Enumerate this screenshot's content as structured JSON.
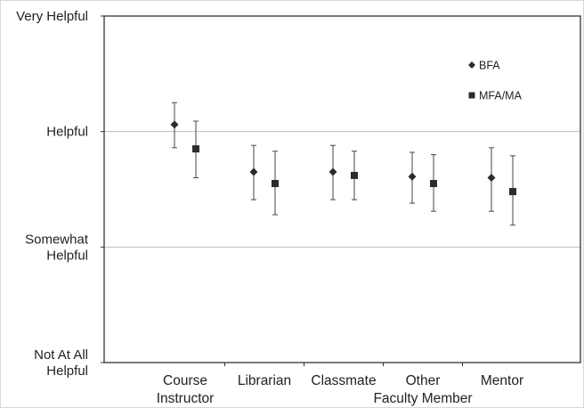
{
  "chart_data": {
    "type": "scatter",
    "y_ticks": [
      {
        "value": 0,
        "lines": [
          "Not At All",
          "Helpful"
        ]
      },
      {
        "value": 1,
        "lines": [
          "Somewhat",
          "Helpful"
        ]
      },
      {
        "value": 2,
        "lines": [
          "Helpful"
        ]
      },
      {
        "value": 3,
        "lines": [
          "Very Helpful"
        ]
      }
    ],
    "ylim": [
      0,
      3
    ],
    "categories": [
      {
        "name": "Course Instructor",
        "lines": [
          "Course",
          "Instructor"
        ]
      },
      {
        "name": "Librarian",
        "lines": [
          "Librarian"
        ]
      },
      {
        "name": "Classmate",
        "lines": [
          "Classmate"
        ]
      },
      {
        "name": "Other Faculty Member",
        "lines": [
          "Other",
          "Faculty  Member"
        ]
      },
      {
        "name": "Mentor",
        "lines": [
          "Mentor"
        ]
      }
    ],
    "series": [
      {
        "name": "BFA",
        "marker": "diamond",
        "values": [
          2.06,
          1.65,
          1.65,
          1.61,
          1.6
        ],
        "error_low": [
          1.86,
          1.41,
          1.41,
          1.38,
          1.31
        ],
        "error_high": [
          2.25,
          1.88,
          1.88,
          1.82,
          1.86
        ]
      },
      {
        "name": "MFA/MA",
        "marker": "square",
        "values": [
          1.85,
          1.55,
          1.62,
          1.55,
          1.48
        ],
        "error_low": [
          1.6,
          1.28,
          1.41,
          1.31,
          1.19
        ],
        "error_high": [
          2.09,
          1.83,
          1.83,
          1.8,
          1.79
        ]
      }
    ],
    "gridlines": [
      1,
      2
    ],
    "legend": {
      "position": "top-right"
    },
    "title": "",
    "xlabel": "",
    "ylabel": ""
  },
  "colors": {
    "marker": "#2b2b2b",
    "error_bar": "#555555",
    "gridline": "#bdbdbd",
    "frame": "#333333",
    "outer_border": "#d8d8d8"
  }
}
